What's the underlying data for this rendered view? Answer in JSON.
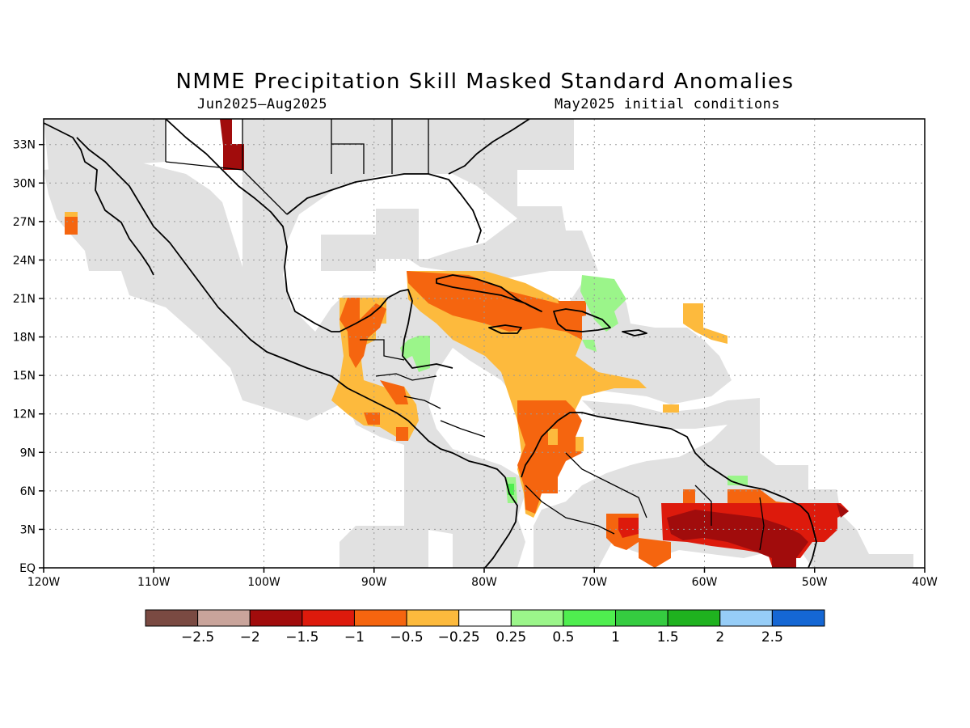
{
  "title": "NMME Precipitation Skill Masked Standard Anomalies",
  "subtitle_left": "Jun2025–Aug2025",
  "subtitle_right": "May2025 initial conditions",
  "map": {
    "lon_range": [
      -120,
      -40
    ],
    "lat_range": [
      0,
      35
    ],
    "lon_ticks": [
      {
        "value": -120,
        "label": "120W"
      },
      {
        "value": -110,
        "label": "110W"
      },
      {
        "value": -100,
        "label": "100W"
      },
      {
        "value": -90,
        "label": "90W"
      },
      {
        "value": -80,
        "label": "80W"
      },
      {
        "value": -70,
        "label": "70W"
      },
      {
        "value": -60,
        "label": "60W"
      },
      {
        "value": -50,
        "label": "50W"
      },
      {
        "value": -40,
        "label": "40W"
      }
    ],
    "lat_ticks": [
      {
        "value": 0,
        "label": "EQ"
      },
      {
        "value": 3,
        "label": "3N"
      },
      {
        "value": 6,
        "label": "6N"
      },
      {
        "value": 9,
        "label": "9N"
      },
      {
        "value": 12,
        "label": "12N"
      },
      {
        "value": 15,
        "label": "15N"
      },
      {
        "value": 18,
        "label": "18N"
      },
      {
        "value": 21,
        "label": "21N"
      },
      {
        "value": 24,
        "label": "24N"
      },
      {
        "value": 27,
        "label": "27N"
      },
      {
        "value": 30,
        "label": "30N"
      },
      {
        "value": 33,
        "label": "33N"
      }
    ],
    "grid": true,
    "masked_color": "#e1e1e1"
  },
  "colorbar": {
    "colors": [
      "#7a4a42",
      "#c9a49b",
      "#a10c0c",
      "#dd1a0c",
      "#f5650f",
      "#fdba3d",
      "#ffffff",
      "#9bf58a",
      "#4fee4f",
      "#35cc40",
      "#1fb21f",
      "#96cdf7",
      "#1567d4"
    ],
    "labels": [
      "−2.5",
      "−2",
      "−1.5",
      "−1",
      "−0.5",
      "−0.25",
      "0.25",
      "0.5",
      "1",
      "1.5",
      "2",
      "2.5"
    ]
  }
}
